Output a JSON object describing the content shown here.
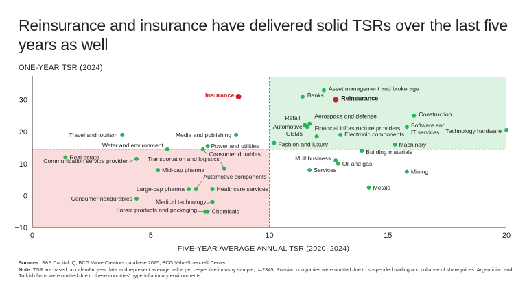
{
  "page": {
    "title": "Reinsurance and insurance have delivered solid TSRs over the last five years as well",
    "sources_label": "Sources:",
    "sources_text": "S&P Capital IQ; BCG Value Creators database 2025; BCG ValueScience® Center.",
    "note_label": "Note:",
    "note_text": "TSR are based on calendar year data and represent average value per respective industry sample; n=2345. Russian companies were omitted due to suspended trading and collapse of share prices. Argentinian and Turkish firms were omitted due to these countries' hyperinflationary environments."
  },
  "colors": {
    "point": "#29b35a",
    "highlight": "#d21f26",
    "quadrant_high": "#ddf3e2",
    "quadrant_low": "#fbdcdc",
    "axis": "#333333",
    "divider": "#666666"
  },
  "chart_data": {
    "type": "scatter",
    "xlabel": "FIVE-YEAR AVERAGE ANNUAL TSR (2020–2024)",
    "ylabel": "ONE-YEAR TSR (2024)",
    "xlim": [
      0,
      20
    ],
    "ylim": [
      -10,
      37
    ],
    "xticks": [
      "0",
      "5",
      "10",
      "15",
      "20"
    ],
    "yticks": [
      "−10",
      "0",
      "10",
      "20",
      "30"
    ],
    "xtick_values": [
      0,
      5,
      10,
      15,
      20
    ],
    "ytick_values": [
      -10,
      0,
      10,
      20,
      30
    ],
    "divider_x": 10,
    "divider_y": 14.5,
    "grid": false,
    "shaded_quadrants": [
      "upper-right",
      "lower-left"
    ],
    "points": [
      {
        "name": "Insurance",
        "x": 8.7,
        "y": 31,
        "highlight": true
      },
      {
        "name": "Reinsurance",
        "x": 12.8,
        "y": 30,
        "highlight": true
      },
      {
        "name": "Asset management and brokerage",
        "x": 12.3,
        "y": 33
      },
      {
        "name": "Banks",
        "x": 11.4,
        "y": 31
      },
      {
        "name": "Construction",
        "x": 16.1,
        "y": 25
      },
      {
        "name": "Retail",
        "x": 11.5,
        "y": 22
      },
      {
        "name": "Aerospace and defense",
        "x": 11.7,
        "y": 22.5
      },
      {
        "name": "Automotive OEMs",
        "x": 11.6,
        "y": 21.5
      },
      {
        "name": "Financial infrastructure providers",
        "x": 12.0,
        "y": 18.5
      },
      {
        "name": "Software and IT services",
        "x": 15.8,
        "y": 21.5
      },
      {
        "name": "Technology hardware",
        "x": 20.0,
        "y": 20.5
      },
      {
        "name": "Electronic components",
        "x": 13.0,
        "y": 19
      },
      {
        "name": "Fashion and luxury",
        "x": 10.2,
        "y": 16.5
      },
      {
        "name": "Machinery",
        "x": 15.3,
        "y": 16
      },
      {
        "name": "Building materials",
        "x": 13.9,
        "y": 14
      },
      {
        "name": "Multibusiness",
        "x": 12.8,
        "y": 11
      },
      {
        "name": "Oil and gas",
        "x": 12.9,
        "y": 10
      },
      {
        "name": "Services",
        "x": 11.7,
        "y": 8
      },
      {
        "name": "Mining",
        "x": 15.8,
        "y": 7.5
      },
      {
        "name": "Metals",
        "x": 14.2,
        "y": 2.5
      },
      {
        "name": "Travel and tourism",
        "x": 3.8,
        "y": 19
      },
      {
        "name": "Media and publishing",
        "x": 8.6,
        "y": 19
      },
      {
        "name": "Water and environment",
        "x": 5.7,
        "y": 14.5
      },
      {
        "name": "Power and utilities",
        "x": 7.4,
        "y": 15.5
      },
      {
        "name": "Consumer durables",
        "x": 7.2,
        "y": 14.5
      },
      {
        "name": "Real estate",
        "x": 1.4,
        "y": 12
      },
      {
        "name": "Communication service provider",
        "x": 4.4,
        "y": 11.5
      },
      {
        "name": "Transportation and logistics",
        "x": 8.1,
        "y": 8.5
      },
      {
        "name": "Mid-cap pharma",
        "x": 5.3,
        "y": 8
      },
      {
        "name": "Automotive components",
        "x": 6.9,
        "y": 2
      },
      {
        "name": "Large-cap pharma",
        "x": 6.6,
        "y": 2
      },
      {
        "name": "Healthcare services",
        "x": 7.6,
        "y": 2
      },
      {
        "name": "Consumer nondurables",
        "x": 4.4,
        "y": -1
      },
      {
        "name": "Medical technology",
        "x": 7.6,
        "y": -2
      },
      {
        "name": "Forest products and packaging",
        "x": 7.3,
        "y": -5
      },
      {
        "name": "Chemicals",
        "x": 7.4,
        "y": -5
      }
    ]
  }
}
